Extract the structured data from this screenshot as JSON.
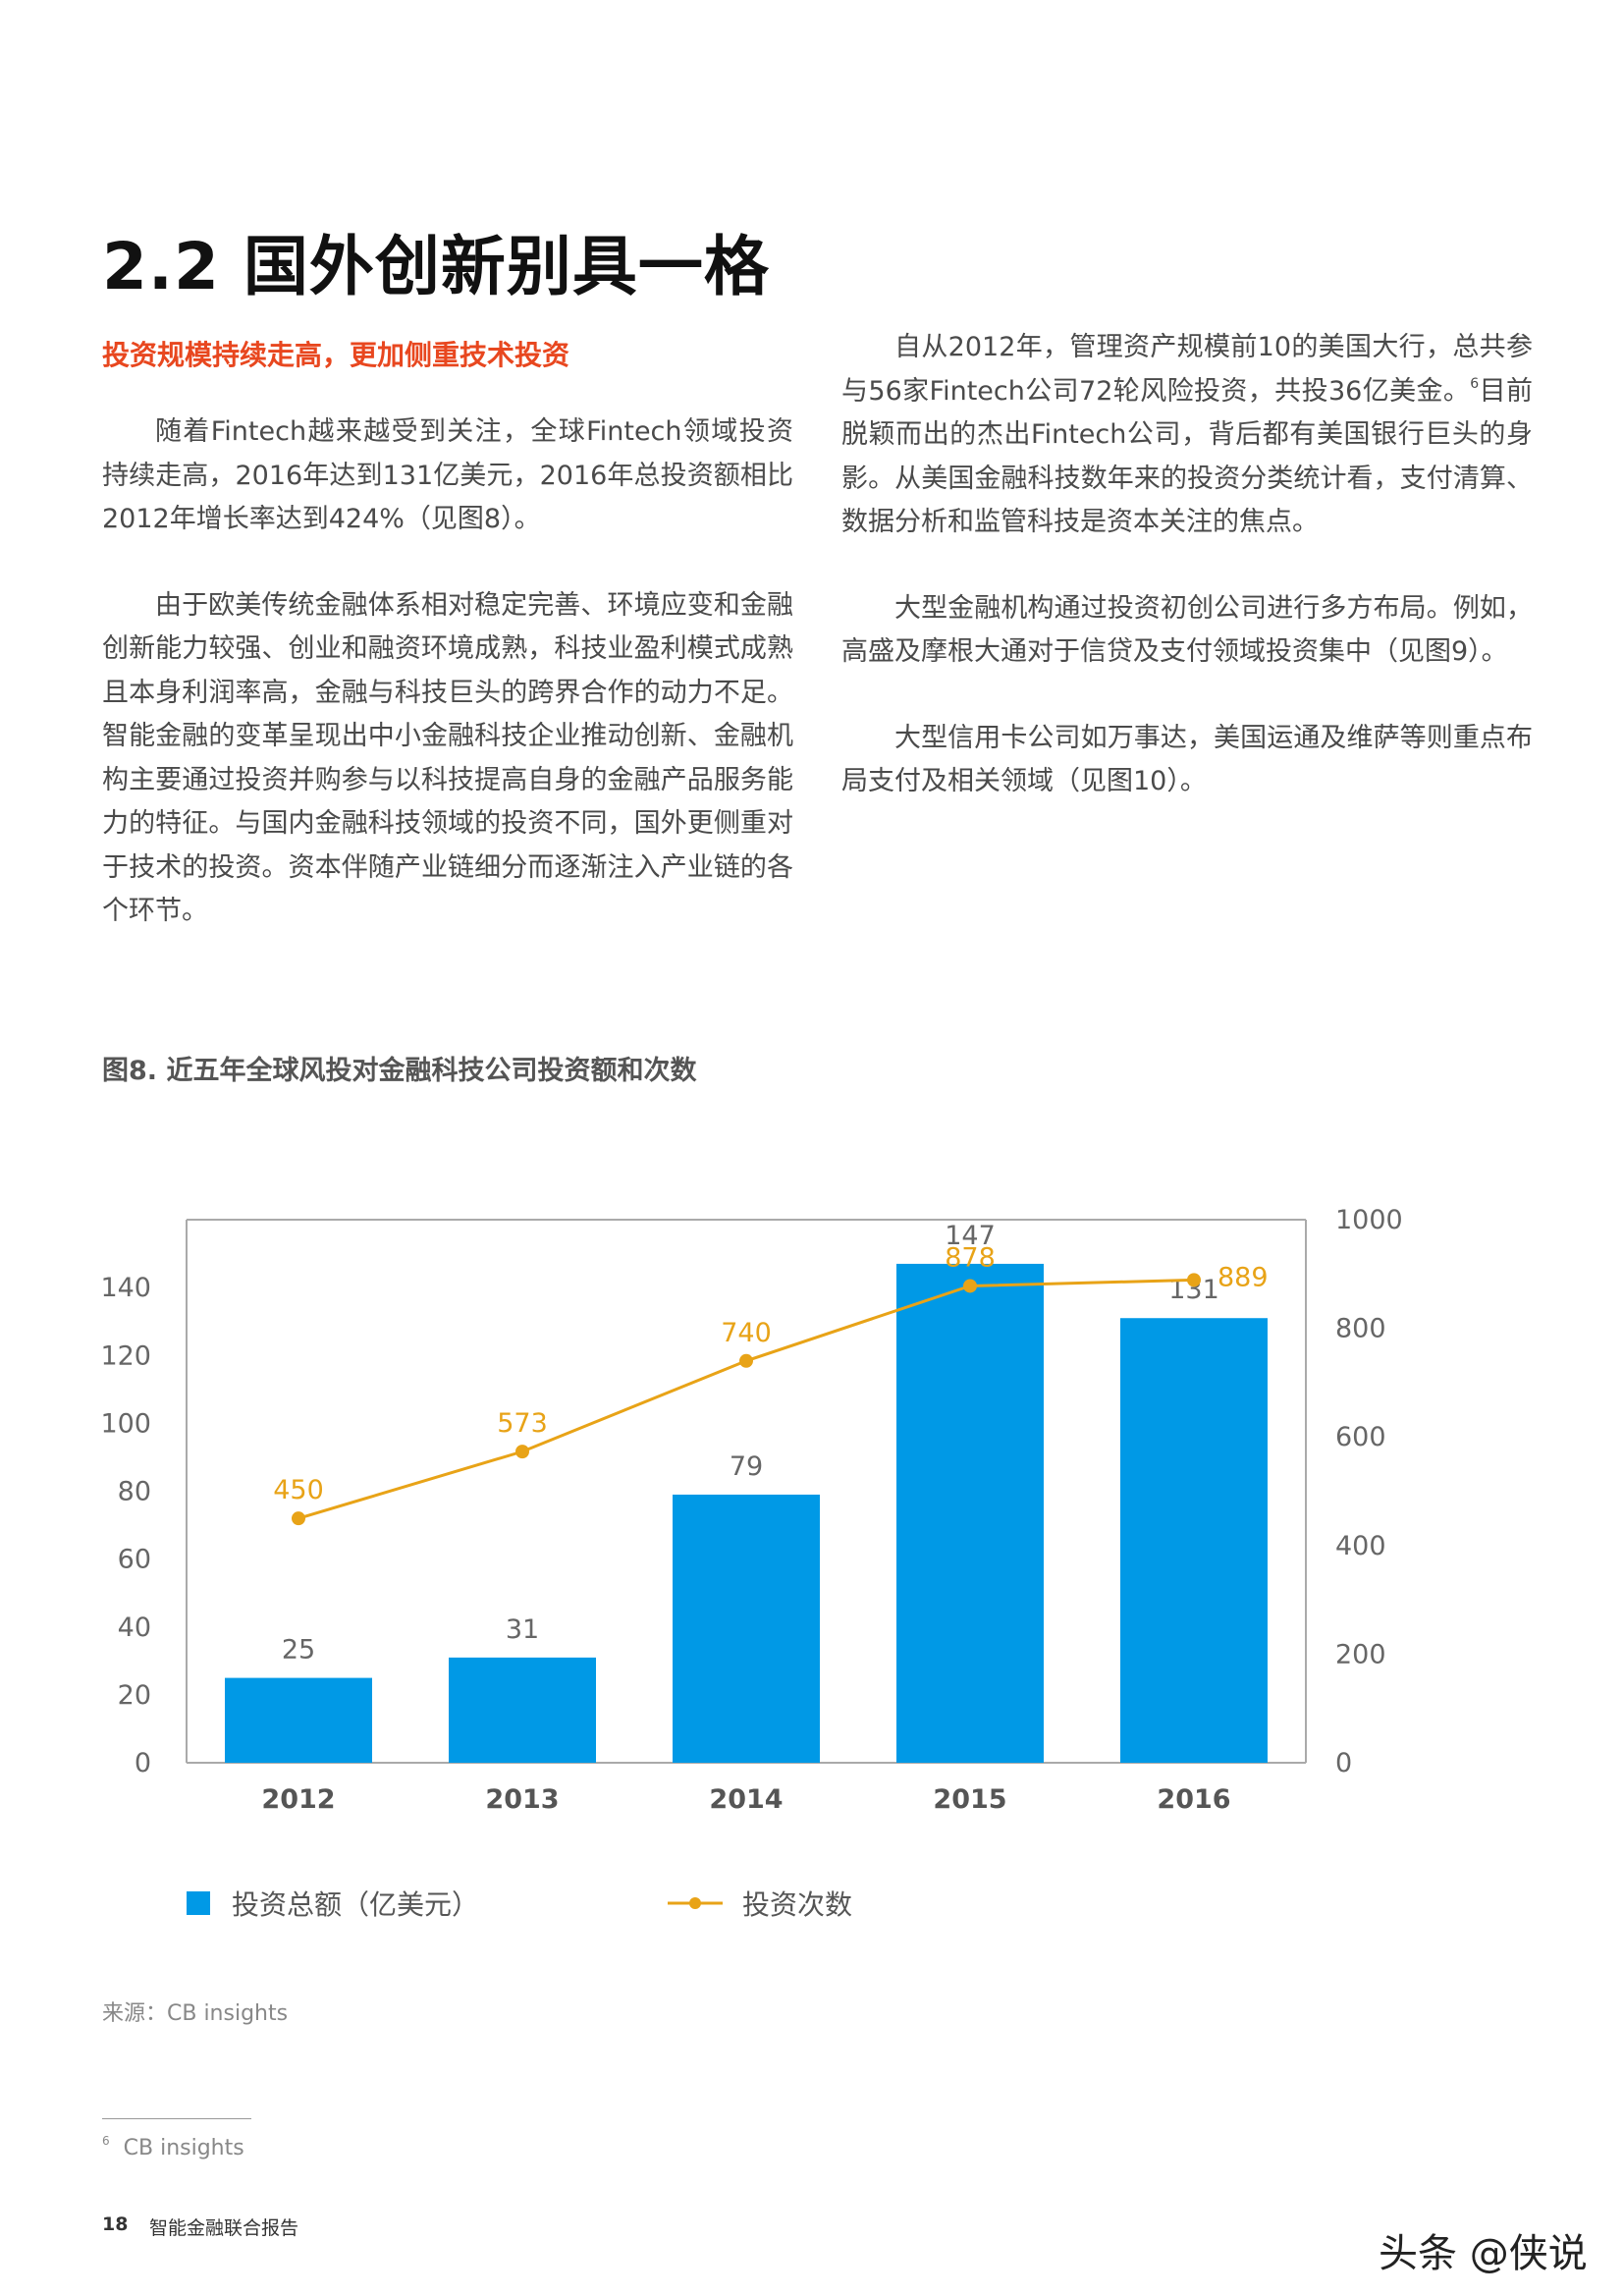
{
  "heading": {
    "title": "2.2 国外创新别具一格",
    "subtitle": "投资规模持续走高，更加侧重技术投资"
  },
  "body": {
    "left_paragraphs": [
      "随着Fintech越来越受到关注，全球Fintech领域投资持续走高，2016年达到131亿美元，2016年总投资额相比2012年增长率达到424%（见图8）。",
      "由于欧美传统金融体系相对稳定完善、环境应变和金融创新能力较强、创业和融资环境成熟，科技业盈利模式成熟且本身利润率高，金融与科技巨头的跨界合作的动力不足。智能金融的变革呈现出中小金融科技企业推动创新、金融机构主要通过投资并购参与以科技提高自身的金融产品服务能力的特征。与国内金融科技领域的投资不同，国外更侧重对于技术的投资。资本伴随产业链细分而逐渐注入产业链的各个环节。"
    ],
    "right_p1_before_sup": "自从2012年，管理资产规模前10的美国大行，总共参与56家Fintech公司72轮风险投资，共投36亿美金。",
    "right_p1_sup": "6",
    "right_p1_after_sup": "目前脱颖而出的杰出Fintech公司，背后都有美国银行巨头的身影。从美国金融科技数年来的投资分类统计看，支付清算、数据分析和监管科技是资本关注的焦点。",
    "right_p2": "大型金融机构通过投资初创公司进行多方布局。例如，高盛及摩根大通对于信贷及支付领域投资集中（见图9）。",
    "right_p3": "大型信用卡公司如万事达，美国运通及维萨等则重点布局支付及相关领域（见图10）。"
  },
  "figure": {
    "title": "图8. 近五年全球风投对金融科技公司投资额和次数",
    "legend_bar": "投资总额（亿美元）",
    "legend_line": "投资次数",
    "source": "来源：CB insights"
  },
  "chart_data": {
    "type": "bar",
    "title": "图8. 近五年全球风投对金融科技公司投资额和次数",
    "categories": [
      "2012",
      "2013",
      "2014",
      "2015",
      "2016"
    ],
    "series": [
      {
        "name": "投资总额（亿美元）",
        "type": "bar",
        "axis": "left",
        "values": [
          25,
          31,
          79,
          147,
          131
        ],
        "color": "#0099e6"
      },
      {
        "name": "投资次数",
        "type": "line",
        "axis": "right",
        "values": [
          450,
          573,
          740,
          878,
          889
        ],
        "color": "#e8a317"
      }
    ],
    "y_left": {
      "min": 0,
      "max": 160,
      "ticks": [
        0,
        20,
        40,
        60,
        80,
        100,
        120,
        140
      ]
    },
    "y_right": {
      "min": 0,
      "max": 1000,
      "ticks": [
        0,
        200,
        400,
        600,
        800,
        1000
      ]
    },
    "legend": "bottom"
  },
  "footnote": {
    "marker": "6",
    "text": "CB insights"
  },
  "footer": {
    "page_number": "18",
    "report_name": "智能金融联合报告",
    "watermark": "头条 @侠说"
  }
}
